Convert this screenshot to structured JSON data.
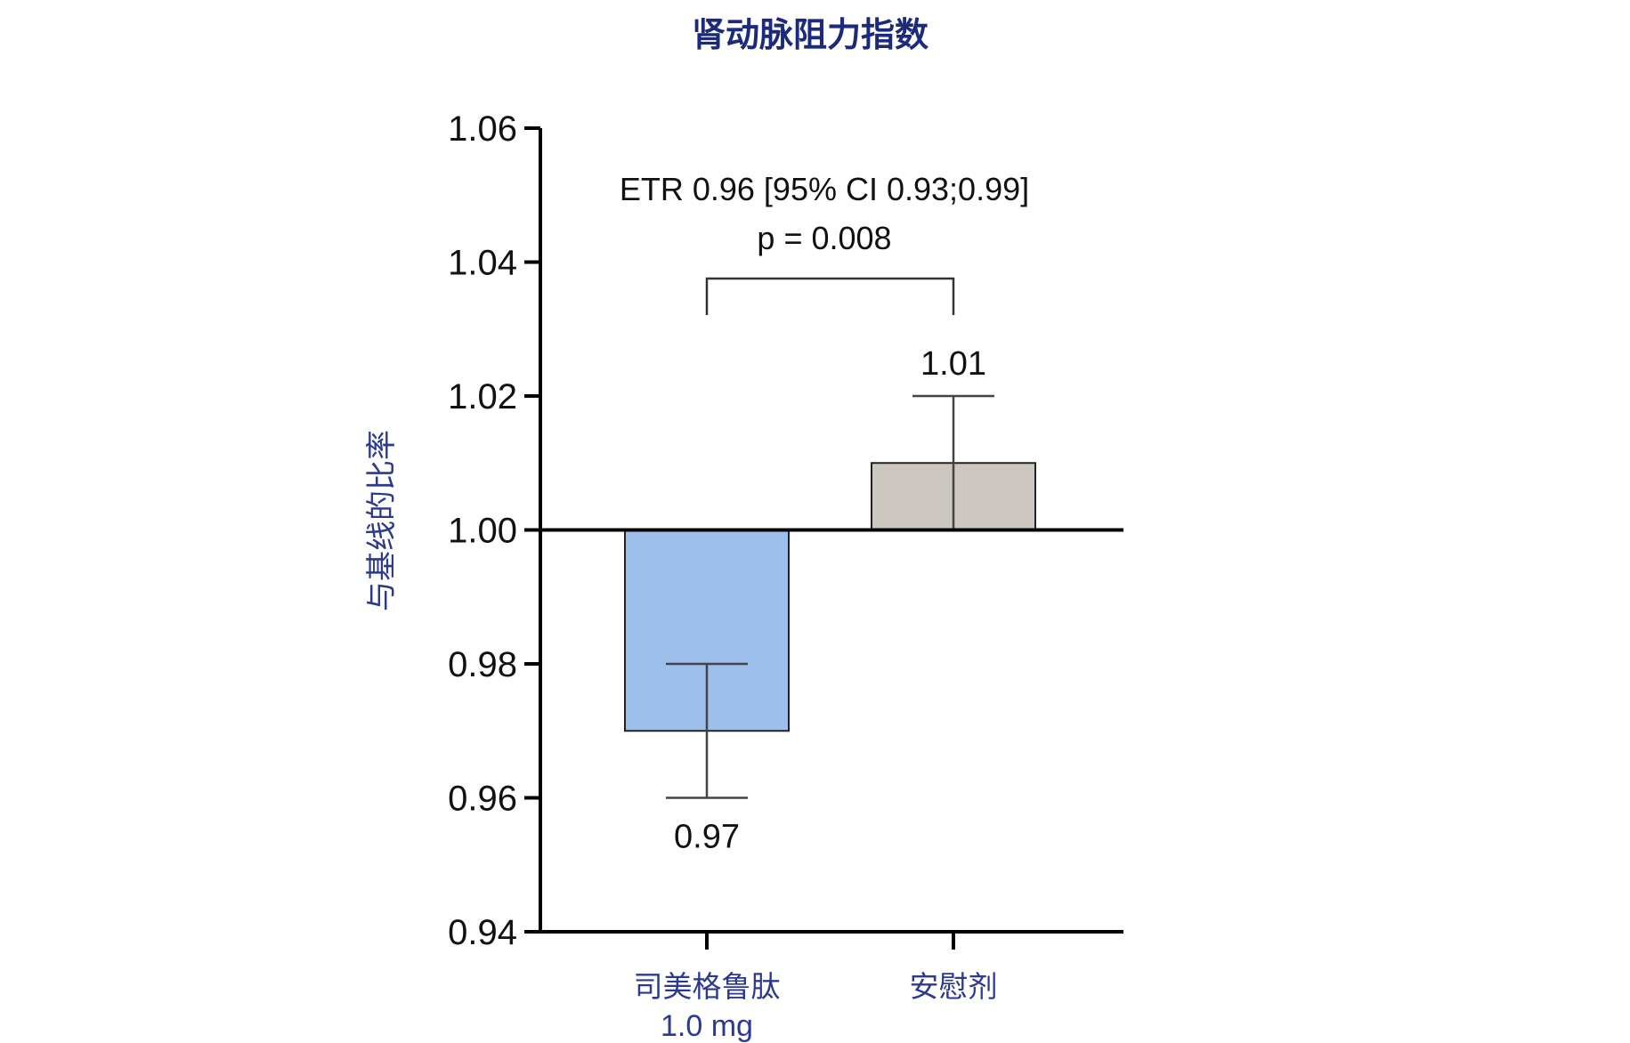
{
  "chart_data": {
    "type": "bar",
    "title": "肾动脉阻力指数",
    "ylabel": "与基线的比率",
    "xlabel": "",
    "baseline": 1.0,
    "ylim": [
      0.94,
      1.06
    ],
    "yticks": [
      0.94,
      0.96,
      0.98,
      1.0,
      1.02,
      1.04,
      1.06
    ],
    "ytick_labels": [
      "0.94",
      "0.96",
      "0.98",
      "1.00",
      "1.02",
      "1.04",
      "1.06"
    ],
    "categories": [
      {
        "label_line1": "司美格鲁肽",
        "label_line2": "1.0 mg"
      },
      {
        "label_line1": "安慰剂",
        "label_line2": ""
      }
    ],
    "values": [
      0.97,
      1.01
    ],
    "error_low": [
      0.96,
      1.0
    ],
    "error_high": [
      0.98,
      1.02
    ],
    "value_labels": [
      "0.97",
      "1.01"
    ],
    "bar_colors": [
      "#9dbfec",
      "#cdc7c1"
    ],
    "annotation": {
      "line1": "ETR 0.96 [95% CI  0.93;0.99]",
      "line2": "p = 0.008"
    },
    "colors": {
      "title": "#1b2a7a",
      "ylabel": "#2b3a8f",
      "category": "#2b3a8f",
      "axis": "#000000",
      "errorbar": "#444444"
    },
    "grid": false,
    "legend": "none"
  }
}
